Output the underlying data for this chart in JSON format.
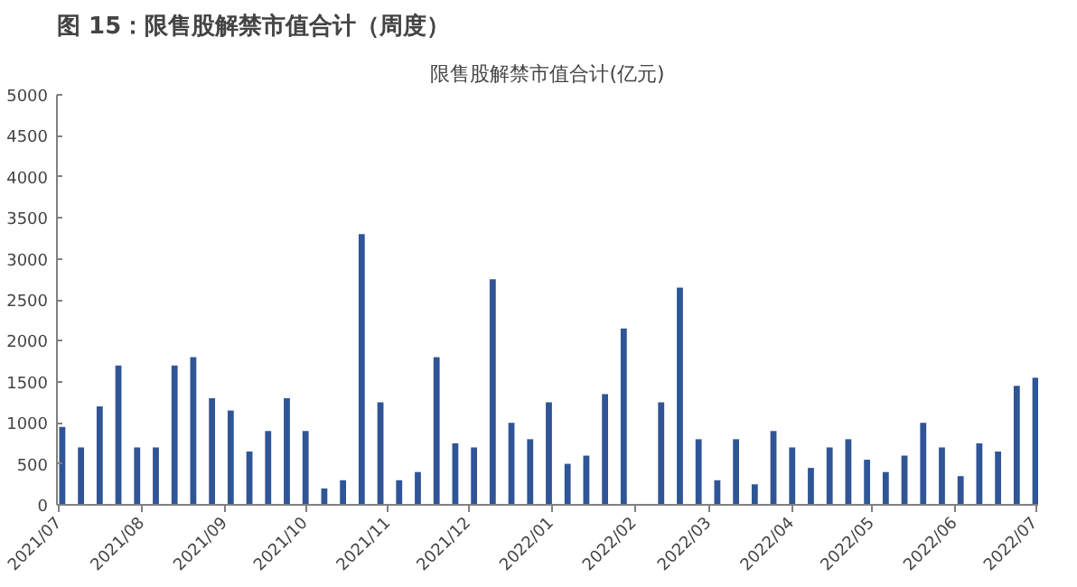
{
  "chart_data": {
    "type": "bar",
    "title": "图 15：限售股解禁市值合计（周度）",
    "subtitle": "限售股解禁市值合计(亿元)",
    "x": [
      "2021-07-02",
      "2021-07-09",
      "2021-07-16",
      "2021-07-23",
      "2021-07-30",
      "2021-08-06",
      "2021-08-13",
      "2021-08-20",
      "2021-08-27",
      "2021-09-03",
      "2021-09-10",
      "2021-09-17",
      "2021-09-24",
      "2021-10-01",
      "2021-10-08",
      "2021-10-15",
      "2021-10-22",
      "2021-10-29",
      "2021-11-05",
      "2021-11-12",
      "2021-11-19",
      "2021-11-26",
      "2021-12-03",
      "2021-12-10",
      "2021-12-17",
      "2021-12-24",
      "2021-12-31",
      "2022-01-07",
      "2022-01-14",
      "2022-01-21",
      "2022-01-28",
      "2022-02-04",
      "2022-02-11",
      "2022-02-18",
      "2022-02-25",
      "2022-03-04",
      "2022-03-11",
      "2022-03-18",
      "2022-03-25",
      "2022-04-01",
      "2022-04-08",
      "2022-04-15",
      "2022-04-22",
      "2022-04-29",
      "2022-05-06",
      "2022-05-13",
      "2022-05-20",
      "2022-05-27",
      "2022-06-03",
      "2022-06-10",
      "2022-06-17",
      "2022-06-24",
      "2022-07-01"
    ],
    "values": [
      950,
      700,
      1200,
      1700,
      700,
      700,
      1700,
      1800,
      1300,
      1150,
      650,
      900,
      1300,
      900,
      200,
      300,
      3300,
      1250,
      300,
      400,
      1800,
      750,
      700,
      2750,
      1000,
      800,
      1250,
      500,
      600,
      1350,
      2150,
      null,
      1250,
      2650,
      800,
      300,
      800,
      250,
      900,
      700,
      450,
      700,
      800,
      550,
      400,
      600,
      1000,
      700,
      350,
      750,
      650,
      1450,
      1550
    ],
    "color": "#2f5597",
    "xlim": [
      "2021-06-30",
      "2022-07-02"
    ],
    "xticks": [
      {
        "value": "2021-07-01",
        "label": "2021/07"
      },
      {
        "value": "2021-08-01",
        "label": "2021/08"
      },
      {
        "value": "2021-09-01",
        "label": "2021/09"
      },
      {
        "value": "2021-10-01",
        "label": "2021/10"
      },
      {
        "value": "2021-11-01",
        "label": "2021/11"
      },
      {
        "value": "2021-12-01",
        "label": "2021/12"
      },
      {
        "value": "2022-01-01",
        "label": "2022/01"
      },
      {
        "value": "2022-02-01",
        "label": "2022/02"
      },
      {
        "value": "2022-03-01",
        "label": "2022/03"
      },
      {
        "value": "2022-04-01",
        "label": "2022/04"
      },
      {
        "value": "2022-05-01",
        "label": "2022/05"
      },
      {
        "value": "2022-06-01",
        "label": "2022/06"
      },
      {
        "value": "2022-07-01",
        "label": "2022/07"
      }
    ],
    "ylim": [
      0,
      5000
    ],
    "yticks": [
      0,
      500,
      1000,
      1500,
      2000,
      2500,
      3000,
      3500,
      4000,
      4500,
      5000
    ],
    "grid": false
  }
}
